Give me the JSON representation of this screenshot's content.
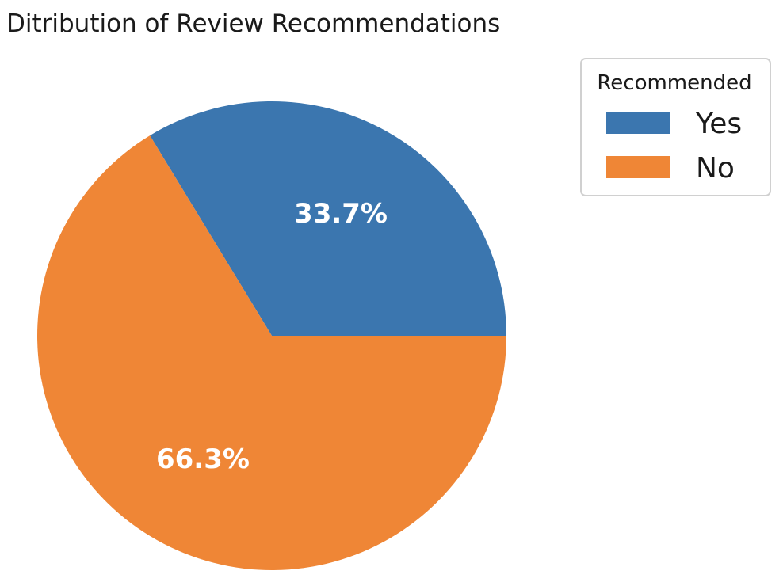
{
  "chart_data": {
    "type": "pie",
    "title": "Ditribution of Review Recommendations",
    "legend_title": "Recommended",
    "legend_position": "right",
    "start_angle_deg": 0,
    "direction": "counterclockwise",
    "slices": [
      {
        "label": "Yes",
        "value": 33.7,
        "display": "33.7%",
        "color": "#3b76af"
      },
      {
        "label": "No",
        "value": 66.3,
        "display": "66.3%",
        "color": "#ef8636"
      }
    ]
  }
}
